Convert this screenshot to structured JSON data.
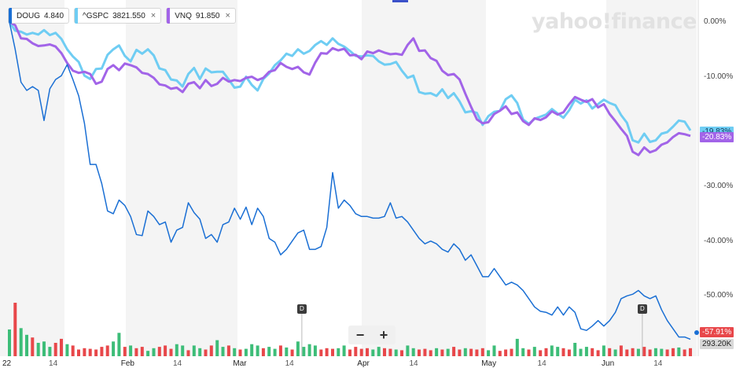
{
  "legend": [
    {
      "symbol": "DOUG",
      "value": "4.840",
      "color": "#1a6fd4",
      "closable": false
    },
    {
      "symbol": "^GSPC",
      "value": "3821.550",
      "color": "#6fcdf3",
      "closable": true,
      "close_icon": "×"
    },
    {
      "symbol": "VNQ",
      "value": "91.850",
      "color": "#a264e8",
      "closable": true,
      "close_icon": "×"
    }
  ],
  "watermark": "yahoo!finance",
  "zoom": {
    "minus": "−",
    "plus": "+"
  },
  "markers": {
    "dividend_label": "D"
  },
  "price_tags": [
    {
      "series": "^GSPC",
      "text": "-19.83%",
      "color": "#6fcdf3"
    },
    {
      "series": "VNQ",
      "text": "-20.83%",
      "color": "#a264e8"
    },
    {
      "series": "DOUG",
      "text": "-57.91%",
      "color": "#e8474a"
    },
    {
      "series": "volume",
      "text": "293.20K",
      "color": "#d8d8d8"
    }
  ],
  "chart_data": {
    "type": "line",
    "x_unit": "trading day (2022)",
    "xlabel": "",
    "ylabel": "",
    "ylim": [
      -61,
      4
    ],
    "y_ticks": [
      {
        "v": 0,
        "label": "0.00%"
      },
      {
        "v": -10,
        "label": "-10.00%"
      },
      {
        "v": -20,
        "label": "-20.00%"
      },
      {
        "v": -30,
        "label": "-30.00%"
      },
      {
        "v": -40,
        "label": "-40.00%"
      },
      {
        "v": -50,
        "label": "-50.00%"
      }
    ],
    "x_ticks": [
      {
        "date": "2022-01-03",
        "label": "22",
        "month": true
      },
      {
        "date": "2022-01-14",
        "label": "14",
        "month": false
      },
      {
        "date": "2022-02-01",
        "label": "Feb",
        "month": true
      },
      {
        "date": "2022-02-14",
        "label": "14",
        "month": false
      },
      {
        "date": "2022-03-01",
        "label": "Mar",
        "month": true
      },
      {
        "date": "2022-03-14",
        "label": "14",
        "month": false
      },
      {
        "date": "2022-04-01",
        "label": "Apr",
        "month": true
      },
      {
        "date": "2022-04-14",
        "label": "14",
        "month": false
      },
      {
        "date": "2022-05-02",
        "label": "May",
        "month": true
      },
      {
        "date": "2022-05-16",
        "label": "14",
        "month": false
      },
      {
        "date": "2022-06-01",
        "label": "Jun",
        "month": true
      },
      {
        "date": "2022-06-14",
        "label": "14",
        "month": false
      }
    ],
    "dates_start": "2022-01-03",
    "series": [
      {
        "name": "^GSPC",
        "color": "#6fcdf3",
        "values": [
          0.0,
          -1.6,
          -1.8,
          -2.3,
          -2.0,
          -2.3,
          -1.5,
          -2.4,
          -2.0,
          -3.1,
          -5.0,
          -6.3,
          -7.3,
          -9.8,
          -10.4,
          -8.6,
          -8.5,
          -6.0,
          -5.0,
          -4.3,
          -6.2,
          -7.2,
          -5.1,
          -5.8,
          -5.0,
          -6.1,
          -8.5,
          -8.8,
          -10.5,
          -10.7,
          -11.8,
          -9.5,
          -8.4,
          -10.4,
          -8.5,
          -9.2,
          -9.1,
          -9.1,
          -10.5,
          -12.0,
          -11.8,
          -10.0,
          -11.5,
          -12.5,
          -10.4,
          -9.4,
          -7.9,
          -7.0,
          -5.8,
          -6.2,
          -5.0,
          -5.8,
          -5.3,
          -4.2,
          -3.5,
          -4.2,
          -3.0,
          -4.0,
          -4.5,
          -5.3,
          -6.2,
          -6.3,
          -6.1,
          -6.2,
          -7.2,
          -7.8,
          -7.7,
          -7.3,
          -8.9,
          -10.2,
          -9.8,
          -12.8,
          -13.1,
          -13.0,
          -13.5,
          -12.3,
          -13.9,
          -13.0,
          -14.5,
          -16.5,
          -16.3,
          -16.6,
          -18.8,
          -17.2,
          -16.4,
          -16.2,
          -14.1,
          -13.4,
          -14.8,
          -17.8,
          -18.6,
          -17.7,
          -17.3,
          -16.9,
          -15.9,
          -16.7,
          -17.5,
          -16.1,
          -14.2,
          -14.9,
          -14.3,
          -15.8,
          -15.0,
          -14.2,
          -14.8,
          -15.2,
          -17.0,
          -18.4,
          -21.6,
          -22.0,
          -20.4,
          -21.9,
          -21.6,
          -20.4,
          -20.1,
          -19.1,
          -18.0,
          -18.2,
          -19.8
        ]
      },
      {
        "name": "VNQ",
        "color": "#a264e8",
        "values": [
          0.0,
          -0.6,
          -3.0,
          -3.1,
          -3.9,
          -4.4,
          -4.3,
          -4.1,
          -4.5,
          -5.7,
          -7.5,
          -8.9,
          -9.3,
          -9.1,
          -9.5,
          -11.3,
          -10.9,
          -8.6,
          -7.9,
          -8.8,
          -7.6,
          -7.9,
          -8.3,
          -9.3,
          -9.5,
          -10.2,
          -11.4,
          -11.6,
          -12.2,
          -12.0,
          -12.8,
          -11.3,
          -11.0,
          -12.1,
          -10.6,
          -11.7,
          -11.3,
          -10.2,
          -10.9,
          -10.6,
          -10.8,
          -10.2,
          -10.0,
          -10.6,
          -10.2,
          -9.1,
          -8.8,
          -7.5,
          -8.2,
          -8.6,
          -8.2,
          -9.2,
          -9.6,
          -7.4,
          -5.7,
          -5.8,
          -4.8,
          -5.2,
          -4.9,
          -6.1,
          -6.0,
          -6.8,
          -5.4,
          -5.7,
          -5.2,
          -5.6,
          -5.9,
          -5.8,
          -6.0,
          -4.2,
          -3.0,
          -5.3,
          -5.2,
          -6.6,
          -7.1,
          -8.9,
          -9.7,
          -9.5,
          -10.5,
          -13.1,
          -15.5,
          -17.8,
          -18.5,
          -18.3,
          -16.8,
          -16.2,
          -15.4,
          -16.8,
          -16.5,
          -18.1,
          -18.8,
          -17.6,
          -17.9,
          -17.4,
          -16.3,
          -16.9,
          -16.5,
          -15.0,
          -13.7,
          -14.2,
          -14.6,
          -14.1,
          -15.6,
          -15.0,
          -16.8,
          -18.1,
          -19.5,
          -20.8,
          -23.7,
          -24.3,
          -22.9,
          -23.8,
          -23.4,
          -22.4,
          -22.0,
          -21.0,
          -20.3,
          -20.5,
          -20.8
        ]
      },
      {
        "name": "DOUG",
        "color": "#1a6fd4",
        "values": [
          0.0,
          -5.0,
          -11.0,
          -12.5,
          -11.8,
          -12.5,
          -18.0,
          -12.2,
          -10.5,
          -9.8,
          -7.8,
          -10.5,
          -13.5,
          -18.5,
          -26.0,
          -26.0,
          -29.5,
          -34.5,
          -35.0,
          -32.5,
          -33.5,
          -35.5,
          -38.8,
          -39.0,
          -34.5,
          -35.5,
          -37.0,
          -36.5,
          -40.2,
          -38.0,
          -37.5,
          -33.0,
          -34.8,
          -36.0,
          -39.5,
          -38.8,
          -40.2,
          -37.0,
          -36.5,
          -34.0,
          -36.0,
          -33.8,
          -37.0,
          -34.0,
          -35.5,
          -39.5,
          -40.2,
          -42.5,
          -41.5,
          -40.0,
          -38.5,
          -38.0,
          -41.5,
          -41.5,
          -41.0,
          -37.5,
          -27.5,
          -34.0,
          -32.5,
          -33.5,
          -35.0,
          -35.5,
          -35.5,
          -35.8,
          -35.8,
          -35.5,
          -33.0,
          -35.8,
          -35.5,
          -36.5,
          -38.0,
          -39.5,
          -40.5,
          -40.0,
          -40.5,
          -41.5,
          -42.0,
          -40.5,
          -41.5,
          -43.5,
          -42.5,
          -44.5,
          -46.5,
          -46.5,
          -45.0,
          -46.5,
          -48.0,
          -47.5,
          -48.0,
          -49.0,
          -50.5,
          -52.0,
          -52.8,
          -53.0,
          -53.5,
          -52.0,
          -53.5,
          -52.0,
          -53.0,
          -56.0,
          -56.3,
          -55.5,
          -54.5,
          -55.5,
          -54.5,
          -53.0,
          -50.5,
          -50.0,
          -49.7,
          -49.0,
          -50.0,
          -50.5,
          -50.0,
          -52.5,
          -54.5,
          -56.0,
          -57.5,
          -57.5,
          -57.9
        ]
      }
    ],
    "volume": {
      "type": "bar",
      "colors": {
        "up": "#3dbd78",
        "down": "#e8474a"
      },
      "values": [
        40,
        80,
        42,
        32,
        28,
        20,
        22,
        14,
        20,
        26,
        18,
        16,
        10,
        12,
        11,
        10,
        14,
        16,
        22,
        35,
        14,
        16,
        12,
        14,
        8,
        12,
        14,
        16,
        11,
        18,
        16,
        9,
        16,
        12,
        10,
        16,
        24,
        14,
        16,
        12,
        10,
        11,
        18,
        16,
        12,
        14,
        11,
        16,
        13,
        10,
        22,
        14,
        18,
        16,
        10,
        12,
        11,
        12,
        16,
        10,
        14,
        11,
        12,
        10,
        14,
        12,
        11,
        10,
        9,
        16,
        12,
        10,
        11,
        9,
        12,
        10,
        11,
        14,
        10,
        12,
        11,
        10,
        12,
        9,
        16,
        8,
        10,
        11,
        26,
        12,
        10,
        14,
        9,
        12,
        16,
        14,
        12,
        10,
        20,
        11,
        14,
        12,
        9,
        16,
        12,
        10,
        16,
        10,
        12,
        11,
        14,
        10,
        12,
        11,
        10,
        12,
        13,
        10,
        12
      ],
      "up": [
        1,
        0,
        1,
        1,
        0,
        1,
        1,
        1,
        0,
        0,
        1,
        0,
        0,
        0,
        0,
        0,
        0,
        0,
        1,
        1,
        0,
        1,
        0,
        0,
        1,
        1,
        0,
        0,
        0,
        1,
        1,
        0,
        1,
        1,
        0,
        0,
        1,
        1,
        0,
        1,
        0,
        1,
        1,
        1,
        0,
        1,
        1,
        0,
        1,
        0,
        1,
        1,
        1,
        1,
        0,
        0,
        0,
        1,
        1,
        0,
        0,
        0,
        0,
        1,
        1,
        0,
        0,
        1,
        0,
        1,
        1,
        0,
        0,
        0,
        1,
        0,
        1,
        0,
        0,
        1,
        0,
        0,
        0,
        1,
        1,
        0,
        0,
        0,
        1,
        1,
        0,
        1,
        0,
        0,
        1,
        1,
        0,
        0,
        1,
        1,
        1,
        0,
        0,
        1,
        0,
        1,
        0,
        0,
        0,
        1,
        0,
        0,
        1,
        1,
        0,
        0,
        1,
        0,
        0
      ],
      "ylim": [
        0,
        100
      ]
    },
    "dividend_markers": [
      {
        "date": "2022-03-17"
      },
      {
        "date": "2022-06-10"
      }
    ]
  }
}
